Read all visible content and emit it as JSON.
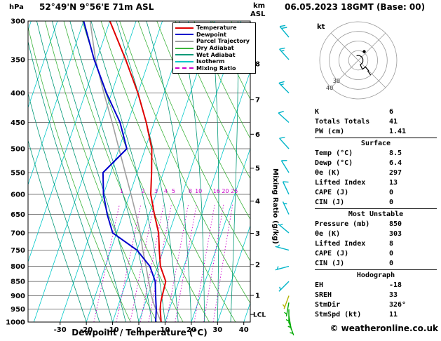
{
  "header": {
    "pressure_unit": "hPa",
    "station": "52°49'N 9°56'E 71m ASL",
    "km_label": "km",
    "asl_label": "ASL",
    "datetime": "06.05.2023 18GMT (Base: 00)"
  },
  "chart_data": {
    "type": "skewt_log_p_sounding",
    "axes": {
      "pressure_hPa_ticks": [
        300,
        350,
        400,
        450,
        500,
        550,
        600,
        650,
        700,
        750,
        800,
        850,
        900,
        950,
        1000
      ],
      "temperature_C_ticks": [
        -30,
        -20,
        -10,
        0,
        10,
        20,
        30,
        40
      ],
      "km_asl_ticks": [
        8,
        7,
        6,
        5,
        4,
        3,
        2,
        1
      ],
      "lcl_label": "LCL",
      "xlabel": "Dewpoint / Temperature (°C)",
      "right_axis_label": "Mixing Ratio (g/kg)",
      "pressure_range_hPa": [
        300,
        1000
      ],
      "temp_range_at_bottom_C": [
        -42,
        42
      ],
      "grid": [
        "isobars",
        "isotherms",
        "dry_adiabats",
        "wet_adiabats",
        "mixing_ratio"
      ]
    },
    "legend": [
      {
        "label": "Temperature",
        "color": "#e00000",
        "dashed": false
      },
      {
        "label": "Dewpoint",
        "color": "#0000cc",
        "dashed": false
      },
      {
        "label": "Parcel Trajectory",
        "color": "#a0a0a0",
        "dashed": false
      },
      {
        "label": "Dry Adiabat",
        "color": "#3cb43c",
        "dashed": false
      },
      {
        "label": "Wet Adiabat",
        "color": "#009977",
        "dashed": false
      },
      {
        "label": "Isotherm",
        "color": "#00c8c8",
        "dashed": false
      },
      {
        "label": "Mixing Ratio",
        "color": "#cc00cc",
        "dashed": true
      }
    ],
    "sounding": {
      "pressure_hPa": [
        1000,
        950,
        925,
        900,
        850,
        800,
        750,
        700,
        650,
        600,
        550,
        500,
        450,
        400,
        350,
        300
      ],
      "temperature_C": [
        8.5,
        6.5,
        5.8,
        5.5,
        5.0,
        1.0,
        -1.5,
        -4.0,
        -8.0,
        -12.0,
        -14.5,
        -17.5,
        -23.0,
        -30.0,
        -39.0,
        -50.0
      ],
      "dewpoint_C": [
        6.4,
        5.0,
        4.0,
        3.0,
        1.0,
        -3.0,
        -10.0,
        -21.5,
        -26.0,
        -30.0,
        -33.0,
        -27.0,
        -33.0,
        -42.0,
        -51.0,
        -60.0
      ],
      "parcel_C": [
        8.5,
        4.8,
        3.0,
        1.4,
        -1.5,
        -4.5,
        -7.8,
        -11.0,
        -15.0,
        -19.5,
        -24.5,
        -30.0,
        -36.0,
        -43.0,
        -50.5,
        -57.5
      ]
    },
    "mixing_ratio_gkg": [
      1,
      2,
      3,
      4,
      5,
      8,
      10,
      16,
      20,
      25
    ],
    "mixing_ratio_label_pressure_hPa": 600,
    "wind_barbs": [
      {
        "p": 320,
        "spd": 20,
        "dir": 320,
        "color": "#00b4c8"
      },
      {
        "p": 350,
        "spd": 15,
        "dir": 318,
        "color": "#00b4c8"
      },
      {
        "p": 400,
        "spd": 15,
        "dir": 315,
        "color": "#00b4c8"
      },
      {
        "p": 450,
        "spd": 10,
        "dir": 312,
        "color": "#00b4c8"
      },
      {
        "p": 500,
        "spd": 10,
        "dir": 318,
        "color": "#00b4c8"
      },
      {
        "p": 550,
        "spd": 10,
        "dir": 328,
        "color": "#00b4c8"
      },
      {
        "p": 600,
        "spd": 10,
        "dir": 335,
        "color": "#00b4c8"
      },
      {
        "p": 650,
        "spd": 5,
        "dir": 335,
        "color": "#00b4c8"
      },
      {
        "p": 700,
        "spd": 5,
        "dir": 310,
        "color": "#00b4c8"
      },
      {
        "p": 750,
        "spd": 5,
        "dir": 285,
        "color": "#00b4c8"
      },
      {
        "p": 800,
        "spd": 5,
        "dir": 255,
        "color": "#00b4c8"
      },
      {
        "p": 850,
        "spd": 5,
        "dir": 225,
        "color": "#00b4c8"
      },
      {
        "p": 900,
        "spd": 5,
        "dir": 200,
        "color": "#b4b400"
      },
      {
        "p": 925,
        "spd": 5,
        "dir": 190,
        "color": "#00aa00"
      },
      {
        "p": 950,
        "spd": 5,
        "dir": 180,
        "color": "#00aa00"
      },
      {
        "p": 975,
        "spd": 5,
        "dir": 170,
        "color": "#00aa00"
      },
      {
        "p": 1000,
        "spd": 5,
        "dir": 160,
        "color": "#00aa00"
      }
    ],
    "hodograph": {
      "unit": "kt",
      "ring_step_kt": 10,
      "max_kt": 40,
      "ring_labels": [
        {
          "kt": 30,
          "text": "30"
        },
        {
          "kt": 40,
          "text": "40"
        }
      ],
      "storm_motion": {
        "dir_deg": 326,
        "spd_kt": 11
      }
    }
  },
  "panel": {
    "groups": [
      {
        "header": null,
        "rows": [
          [
            "K",
            "6"
          ],
          [
            "Totals Totals",
            "41"
          ],
          [
            "PW (cm)",
            "1.41"
          ]
        ]
      },
      {
        "header": "Surface",
        "rows": [
          [
            "Temp (°C)",
            "8.5"
          ],
          [
            "Dewp (°C)",
            "6.4"
          ],
          [
            "θe (K)",
            "297"
          ],
          [
            "Lifted Index",
            "13"
          ],
          [
            "CAPE (J)",
            "0"
          ],
          [
            "CIN (J)",
            "0"
          ]
        ]
      },
      {
        "header": "Most Unstable",
        "rows": [
          [
            "Pressure (mb)",
            "850"
          ],
          [
            "θe (K)",
            "303"
          ],
          [
            "Lifted Index",
            "8"
          ],
          [
            "CAPE (J)",
            "0"
          ],
          [
            "CIN (J)",
            "0"
          ]
        ]
      },
      {
        "header": "Hodograph",
        "rows": [
          [
            "EH",
            "-18"
          ],
          [
            "SREH",
            "33"
          ],
          [
            "StmDir",
            "326°"
          ],
          [
            "StmSpd (kt)",
            "11"
          ]
        ]
      }
    ]
  },
  "copyright": "© weatheronline.co.uk"
}
